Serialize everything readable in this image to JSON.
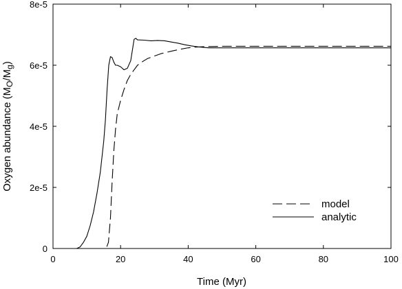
{
  "chart_data": {
    "type": "line",
    "xlabel": "Time (Myr)",
    "ylabel_parts": {
      "main": "Oxygen abundance (M",
      "sub1": "O",
      "mid": "/M",
      "sub2": "g",
      "end": ")"
    },
    "xlim": [
      0,
      100
    ],
    "ylim": [
      0,
      8e-05
    ],
    "x_ticks": [
      0,
      20,
      40,
      60,
      80,
      100
    ],
    "x_tick_labels": [
      "0",
      "20",
      "40",
      "60",
      "80",
      "100"
    ],
    "y_ticks": [
      0,
      2e-05,
      4e-05,
      6e-05,
      8e-05
    ],
    "y_tick_labels": [
      "0",
      "2e-5",
      "4e-5",
      "6e-5",
      "8e-5"
    ],
    "grid": false,
    "legend_position": "lower-right",
    "series": [
      {
        "name": "model",
        "style": "dashed",
        "color": "#000000",
        "points": [
          [
            0,
            0
          ],
          [
            15.7,
            0
          ],
          [
            16.4,
            2e-06
          ],
          [
            17.0,
            1e-05
          ],
          [
            17.5,
            2.2e-05
          ],
          [
            18.0,
            3.2e-05
          ],
          [
            18.5,
            3.9e-05
          ],
          [
            19.0,
            4.4e-05
          ],
          [
            20.0,
            4.85e-05
          ],
          [
            21.0,
            5.2e-05
          ],
          [
            22.0,
            5.5e-05
          ],
          [
            23.0,
            5.7e-05
          ],
          [
            24.0,
            5.85e-05
          ],
          [
            25.0,
            6e-05
          ],
          [
            26.5,
            6.12e-05
          ],
          [
            28.0,
            6.22e-05
          ],
          [
            30.0,
            6.3e-05
          ],
          [
            32.0,
            6.38e-05
          ],
          [
            35.0,
            6.46e-05
          ],
          [
            38.0,
            6.53e-05
          ],
          [
            40.0,
            6.57e-05
          ],
          [
            42.0,
            6.59e-05
          ],
          [
            45.0,
            6.61e-05
          ],
          [
            50.0,
            6.62e-05
          ],
          [
            60.0,
            6.62e-05
          ],
          [
            80.0,
            6.62e-05
          ],
          [
            100.0,
            6.62e-05
          ]
        ]
      },
      {
        "name": "analytic",
        "style": "solid",
        "color": "#000000",
        "points": [
          [
            0,
            0
          ],
          [
            7.0,
            0
          ],
          [
            8.0,
            5e-07
          ],
          [
            9.0,
            2e-06
          ],
          [
            10.0,
            4e-06
          ],
          [
            11.0,
            7.5e-06
          ],
          [
            12.0,
            1.2e-05
          ],
          [
            13.0,
            1.8e-05
          ],
          [
            14.0,
            2.5e-05
          ],
          [
            15.0,
            3.5e-05
          ],
          [
            15.5,
            4.2e-05
          ],
          [
            16.0,
            5.2e-05
          ],
          [
            16.5,
            6e-05
          ],
          [
            17.0,
            6.28e-05
          ],
          [
            17.5,
            6.25e-05
          ],
          [
            18.0,
            6.1e-05
          ],
          [
            18.5,
            6e-05
          ],
          [
            19.0,
            6e-05
          ],
          [
            20.0,
            5.95e-05
          ],
          [
            21.0,
            5.85e-05
          ],
          [
            22.0,
            5.9e-05
          ],
          [
            23.0,
            6.15e-05
          ],
          [
            23.5,
            6.5e-05
          ],
          [
            24.0,
            6.85e-05
          ],
          [
            24.5,
            6.88e-05
          ],
          [
            25.0,
            6.83e-05
          ],
          [
            27.0,
            6.82e-05
          ],
          [
            29.0,
            6.8e-05
          ],
          [
            31.0,
            6.81e-05
          ],
          [
            33.0,
            6.8e-05
          ],
          [
            35.0,
            6.76e-05
          ],
          [
            37.0,
            6.72e-05
          ],
          [
            39.0,
            6.67e-05
          ],
          [
            41.0,
            6.63e-05
          ],
          [
            43.0,
            6.6e-05
          ],
          [
            46.0,
            6.57e-05
          ],
          [
            50.0,
            6.57e-05
          ],
          [
            60.0,
            6.57e-05
          ],
          [
            80.0,
            6.57e-05
          ],
          [
            100.0,
            6.57e-05
          ]
        ]
      }
    ]
  }
}
